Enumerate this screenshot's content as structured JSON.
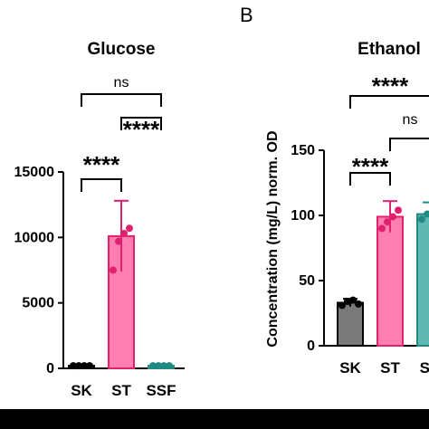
{
  "panel_b_label": "B",
  "chart_data": [
    {
      "type": "bar",
      "title": "Glucose",
      "categories": [
        "SK",
        "ST",
        "SSF"
      ],
      "values": [
        200,
        10100,
        200
      ],
      "errors": [
        0,
        2700,
        0
      ],
      "points": [
        [
          200,
          200,
          200,
          200
        ],
        [
          7500,
          9700,
          10300,
          10700
        ],
        [
          200,
          200,
          200,
          200
        ]
      ],
      "ylim": [
        0,
        15000
      ],
      "yticks": [
        "0",
        "5000",
        "10000",
        "15000"
      ],
      "colors": [
        "#7a7a7a",
        "#ff7fb0",
        "#5fb8b1"
      ],
      "point_colors": [
        "#000000",
        "#e0226e",
        "#1f8a83"
      ],
      "significance": [
        {
          "from": 0,
          "to": 1,
          "label": "****"
        },
        {
          "from": 1,
          "to": 2,
          "label": "****"
        },
        {
          "from": 0,
          "to": 2,
          "label": "ns"
        }
      ]
    },
    {
      "type": "bar",
      "title": "Ethanol",
      "ylabel": "Concentration (mg/L) norm. OD",
      "categories": [
        "SK",
        "ST",
        "SS"
      ],
      "values": [
        33,
        99,
        101
      ],
      "errors": [
        3,
        12,
        9
      ],
      "points": [
        [
          31,
          34,
          35,
          32
        ],
        [
          90,
          95,
          99,
          104
        ],
        [
          97,
          101,
          103,
          99
        ]
      ],
      "ylim": [
        0,
        150
      ],
      "yticks": [
        "0",
        "50",
        "100",
        "150"
      ],
      "colors": [
        "#7a7a7a",
        "#ff7fb0",
        "#5fb8b1"
      ],
      "point_colors": [
        "#000000",
        "#e0226e",
        "#1f8a83"
      ],
      "significance": [
        {
          "from": 0,
          "to": 1,
          "label": "****"
        },
        {
          "from": 1,
          "to": 2,
          "label": "ns"
        },
        {
          "from": 0,
          "to": 2,
          "label": "****"
        }
      ]
    }
  ]
}
